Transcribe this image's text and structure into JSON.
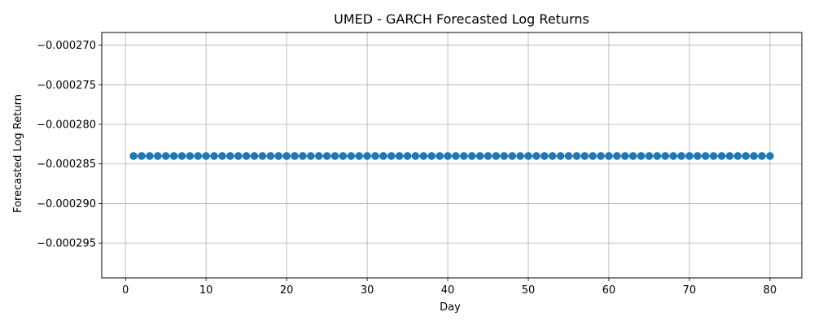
{
  "chart_data": {
    "type": "line",
    "title": "UMED - GARCH Forecasted Log Returns",
    "xlabel": "Day",
    "ylabel": "Forecasted Log Return",
    "xlim": [
      -2.95,
      83.95
    ],
    "ylim": [
      -0.0002994,
      -0.0002684
    ],
    "xticks": [
      0,
      10,
      20,
      30,
      40,
      50,
      60,
      70,
      80
    ],
    "yticks": [
      -0.000295,
      -0.00029,
      -0.000285,
      -0.00028,
      -0.000275,
      -0.00027
    ],
    "ytick_labels": [
      "−0.000295",
      "−0.000290",
      "−0.000285",
      "−0.000280",
      "−0.000275",
      "−0.000270"
    ],
    "grid": true,
    "marker": "circle",
    "series": [
      {
        "color": "#1f77b4",
        "x_start": 1,
        "x_end": 80,
        "y_value": -0.000284
      }
    ]
  }
}
